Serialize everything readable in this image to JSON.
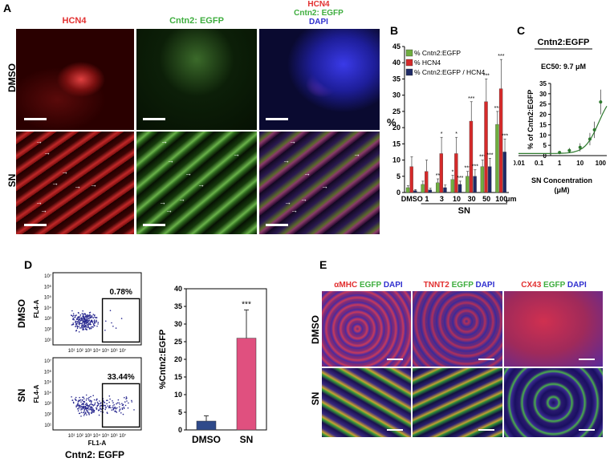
{
  "panels": {
    "A": "A",
    "B": "B",
    "C": "C",
    "D": "D",
    "E": "E"
  },
  "panelA": {
    "col_headers": {
      "hcn4": "HCN4",
      "cntn2": "Cntn2: EGFP",
      "merge_hcn4": "HCN4",
      "merge_cntn2": "Cntn2: EGFP",
      "merge_dapi": "DAPI"
    },
    "rows": [
      "DMSO",
      "SN"
    ],
    "arrow_glyph": "→",
    "colors": {
      "hcn4": "#c81e1e",
      "egfp": "#3aa83a",
      "dapi": "#2e2ed6"
    }
  },
  "chart_data": [
    {
      "type": "bar",
      "panel": "B",
      "ylabel": "%",
      "xlabel": "SN",
      "xunit": "μm",
      "categories": [
        "DMSO",
        "1",
        "3",
        "10",
        "30",
        "50",
        "100"
      ],
      "ylim": [
        0,
        45
      ],
      "yticks": [
        0,
        5,
        10,
        15,
        20,
        25,
        30,
        35,
        40,
        45
      ],
      "series": [
        {
          "name": "% Cntn2:EGFP",
          "color": "#6fae3f",
          "values": [
            1.5,
            2.5,
            3,
            4,
            5,
            8,
            21
          ],
          "errors": [
            0.6,
            1,
            1.2,
            1.3,
            1.5,
            2,
            4
          ]
        },
        {
          "name": "% HCN4",
          "color": "#d42a2a",
          "values": [
            8,
            6.5,
            12,
            12,
            22,
            28,
            32
          ],
          "errors": [
            3,
            3.5,
            5,
            5,
            6,
            7,
            9
          ]
        },
        {
          "name": "% Cntn2:EGFP / HCN4",
          "color": "#1f2a66",
          "values": [
            0.6,
            0.8,
            1.5,
            2.5,
            5,
            8,
            12.5
          ],
          "errors": [
            0.3,
            0.5,
            0.8,
            1,
            2,
            2.5,
            4
          ]
        }
      ],
      "significance": {
        "egfp": [
          "",
          "",
          "**",
          "*",
          "***",
          "***",
          "***"
        ],
        "hcn4": [
          "",
          "",
          "*",
          "*",
          "***",
          "***",
          "***"
        ],
        "ratio": [
          "",
          "",
          "",
          "***",
          "***",
          "***",
          "***"
        ]
      }
    },
    {
      "type": "line",
      "panel": "C",
      "title": "Cntn2:EGFP",
      "annotation": "EC50: 9.7 μM",
      "xlabel": "SN Concentration",
      "xunit": "(μM)",
      "ylabel": "% of Cntn2:EGFP",
      "x_ticks": [
        "0.01",
        "0.1",
        "1",
        "10",
        "100"
      ],
      "y_ticks": [
        0,
        5,
        10,
        15,
        20,
        25,
        30,
        35
      ],
      "x": [
        1,
        3,
        10,
        30,
        50,
        100
      ],
      "y": [
        1.5,
        2.5,
        4,
        8,
        12.5,
        26
      ],
      "errors": [
        0.8,
        1.2,
        2,
        3,
        4,
        6
      ],
      "color": "#2f7a2f"
    },
    {
      "type": "bar",
      "panel": "D",
      "ylabel": "%Cntn2:EGFP",
      "categories": [
        "DMSO",
        "SN"
      ],
      "values": [
        2.5,
        26
      ],
      "errors": [
        1.5,
        8
      ],
      "colors": [
        "#2f4a8a",
        "#e0507f"
      ],
      "ylim": [
        0,
        40
      ],
      "yticks": [
        0,
        5,
        10,
        15,
        20,
        25,
        30,
        35,
        40
      ],
      "significance": [
        "",
        "***"
      ]
    }
  ],
  "panelD_flow": {
    "rows": [
      "DMSO",
      "SN"
    ],
    "percentages": [
      "0.78%",
      "33.44%"
    ],
    "y_axis": "FL4-A",
    "x_axis": "FL1-A",
    "footer": "Cntn2: EGFP",
    "y_ticks": [
      "10⁷",
      "10⁶",
      "10⁵",
      "10⁴",
      "10³",
      "10²",
      "10¹"
    ],
    "x_ticks": "10¹ 10² 10³ 10⁴ 10⁵ 10⁶ 10⁷"
  },
  "panelE": {
    "headers": [
      {
        "marker": "αMHC",
        "egfp": "EGFP",
        "dapi": "DAPI"
      },
      {
        "marker": "TNNT2",
        "egfp": "EGFP",
        "dapi": "DAPI"
      },
      {
        "marker": "CX43",
        "egfp": "EGFP",
        "dapi": "DAPI"
      }
    ],
    "rows": [
      "DMSO",
      "SN"
    ]
  }
}
